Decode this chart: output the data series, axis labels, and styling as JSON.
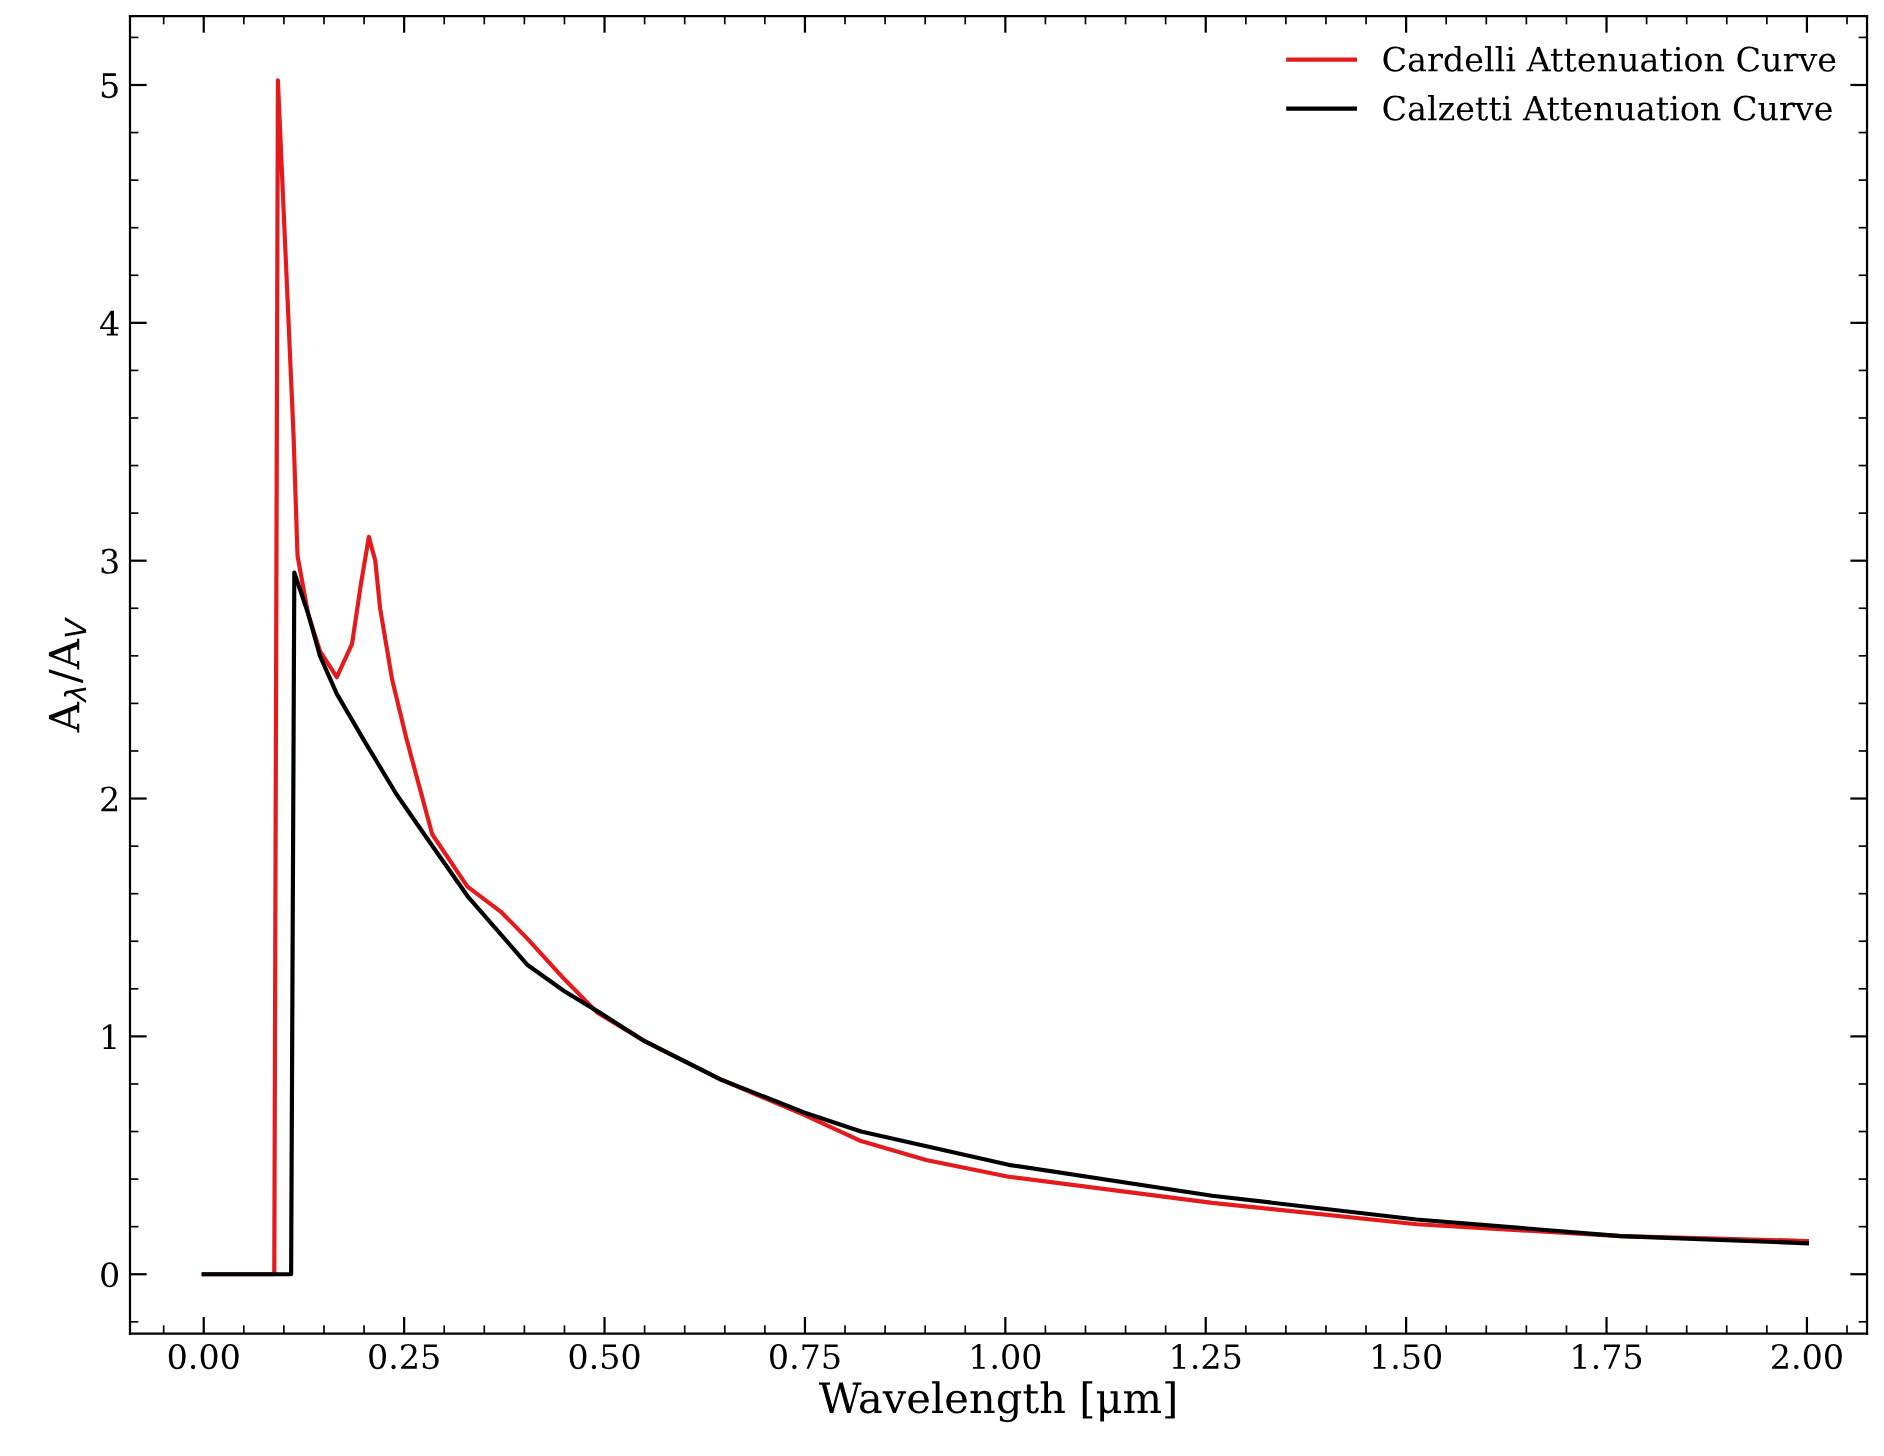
{
  "chart_data": {
    "type": "line",
    "xlabel": "Wavelength [μm]",
    "ylabel": "A$_{λ}$/A$_{V}$",
    "xlim": [
      -0.092,
      2.075
    ],
    "ylim": [
      -0.25,
      5.29
    ],
    "xticks": [
      {
        "value": 0,
        "label": "0.00"
      },
      {
        "value": 0.25,
        "label": "0.25"
      },
      {
        "value": 0.5,
        "label": "0.50"
      },
      {
        "value": 0.75,
        "label": "0.75"
      },
      {
        "value": 1,
        "label": "1.00"
      },
      {
        "value": 1.25,
        "label": "1.25"
      },
      {
        "value": 1.5,
        "label": "1.50"
      },
      {
        "value": 1.75,
        "label": "1.75"
      },
      {
        "value": 2,
        "label": "2.00"
      }
    ],
    "yticks": [
      0,
      1,
      2,
      3,
      4,
      5
    ],
    "grid": false,
    "legend": "top right",
    "series": [
      {
        "name": "Cardelli Attenuation Curve",
        "color": "#e41a1c",
        "x": [
          0.0,
          0.088,
          0.0925,
          0.112,
          0.117,
          0.13,
          0.145,
          0.166,
          0.185,
          0.196,
          0.206,
          0.214,
          0.22,
          0.235,
          0.253,
          0.285,
          0.329,
          0.372,
          0.404,
          0.45,
          0.491,
          0.55,
          0.644,
          0.749,
          0.82,
          0.901,
          1.004,
          1.258,
          1.513,
          1.768,
          2.0
        ],
        "values": [
          0,
          0,
          5.02,
          3.53,
          3.02,
          2.78,
          2.62,
          2.51,
          2.65,
          2.9,
          3.1,
          3.0,
          2.8,
          2.5,
          2.25,
          1.85,
          1.63,
          1.52,
          1.41,
          1.24,
          1.1,
          0.98,
          0.82,
          0.67,
          0.56,
          0.48,
          0.41,
          0.3,
          0.21,
          0.16,
          0.14
        ]
      },
      {
        "name": "Calzetti Attenuation Curve",
        "color": "#000000",
        "x": [
          0.0,
          0.109,
          0.113,
          0.13,
          0.145,
          0.166,
          0.199,
          0.24,
          0.275,
          0.329,
          0.404,
          0.45,
          0.494,
          0.55,
          0.644,
          0.749,
          0.82,
          1.004,
          1.258,
          1.513,
          1.768,
          2.0
        ],
        "values": [
          0,
          0,
          2.95,
          2.78,
          2.6,
          2.44,
          2.25,
          2.02,
          1.85,
          1.59,
          1.3,
          1.19,
          1.1,
          0.98,
          0.82,
          0.68,
          0.6,
          0.46,
          0.33,
          0.23,
          0.16,
          0.13
        ]
      }
    ]
  }
}
